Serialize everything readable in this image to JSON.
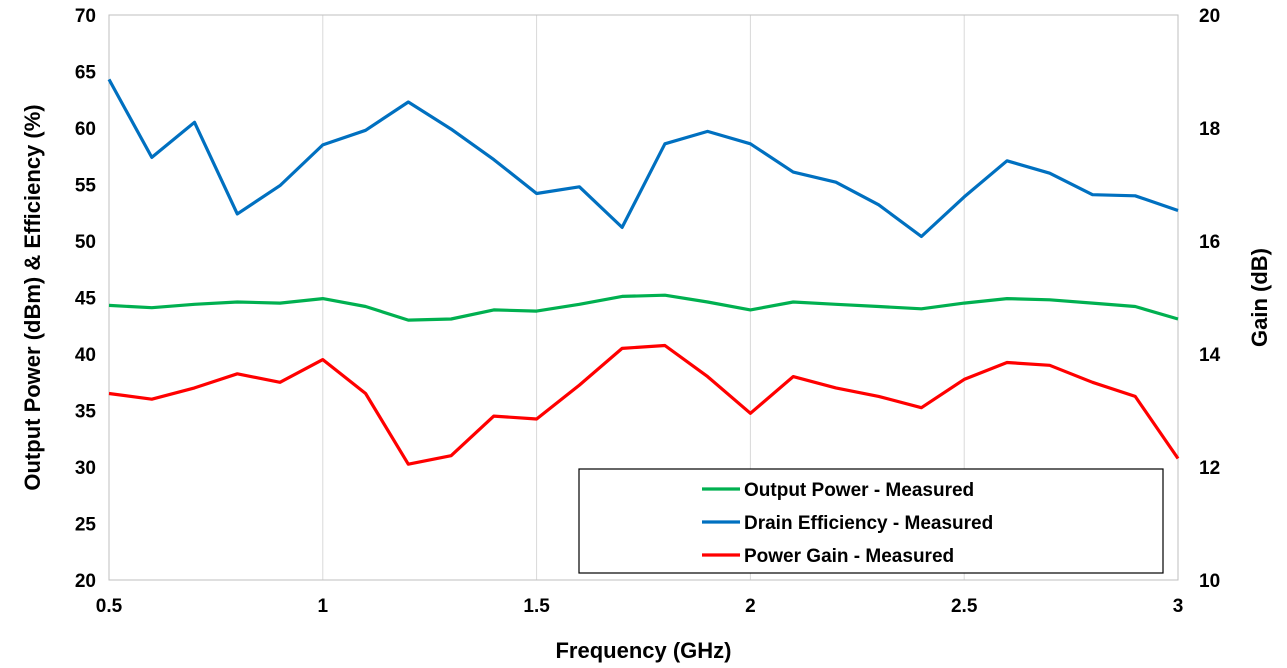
{
  "chart_data": {
    "type": "line",
    "xlabel": "Frequency (GHz)",
    "ylabel": "Output Power (dBm) & Efficiency (%)",
    "y2label": "Gain (dB)",
    "xlim": [
      0.5,
      3
    ],
    "ylim": [
      20,
      70
    ],
    "y2lim": [
      10,
      20
    ],
    "x_ticks": [
      "0.5",
      "1",
      "1.5",
      "2",
      "2.5",
      "3"
    ],
    "y_ticks": [
      "20",
      "25",
      "30",
      "35",
      "40",
      "45",
      "50",
      "55",
      "60",
      "65",
      "70"
    ],
    "y2_ticks": [
      "10",
      "12",
      "14",
      "16",
      "18",
      "20"
    ],
    "grid": "vertical",
    "legend_position": "bottom-right",
    "x": [
      0.5,
      0.6,
      0.7,
      0.8,
      0.9,
      1.0,
      1.1,
      1.2,
      1.3,
      1.4,
      1.5,
      1.6,
      1.7,
      1.8,
      1.9,
      2.0,
      2.1,
      2.2,
      2.3,
      2.4,
      2.5,
      2.6,
      2.7,
      2.8,
      2.9,
      3.0
    ],
    "series": [
      {
        "name": "Output Power - Measured",
        "color": "#00b050",
        "axis": "left",
        "values": [
          44.3,
          44.1,
          44.4,
          44.6,
          44.5,
          44.9,
          44.2,
          43.0,
          43.1,
          43.9,
          43.8,
          44.4,
          45.1,
          45.2,
          44.6,
          43.9,
          44.6,
          44.4,
          44.2,
          44.0,
          44.5,
          44.9,
          44.8,
          44.5,
          44.2,
          43.1
        ]
      },
      {
        "name": "Drain Efficiency - Measured",
        "color": "#0070c0",
        "axis": "left",
        "values": [
          64.3,
          57.4,
          60.5,
          52.4,
          54.9,
          58.5,
          59.8,
          62.3,
          59.9,
          57.2,
          54.2,
          54.8,
          51.2,
          58.6,
          59.7,
          58.6,
          56.1,
          55.2,
          53.2,
          50.4,
          53.9,
          57.1,
          56.0,
          54.1,
          54.0,
          52.7
        ]
      },
      {
        "name": "Power Gain - Measured",
        "color": "#ff0000",
        "axis": "right",
        "values": [
          13.3,
          13.2,
          13.4,
          13.65,
          13.5,
          13.9,
          13.3,
          12.05,
          12.2,
          12.9,
          12.85,
          13.45,
          14.1,
          14.15,
          13.6,
          12.95,
          13.6,
          13.4,
          13.25,
          13.05,
          13.55,
          13.85,
          13.8,
          13.5,
          13.25,
          12.15
        ]
      }
    ]
  }
}
